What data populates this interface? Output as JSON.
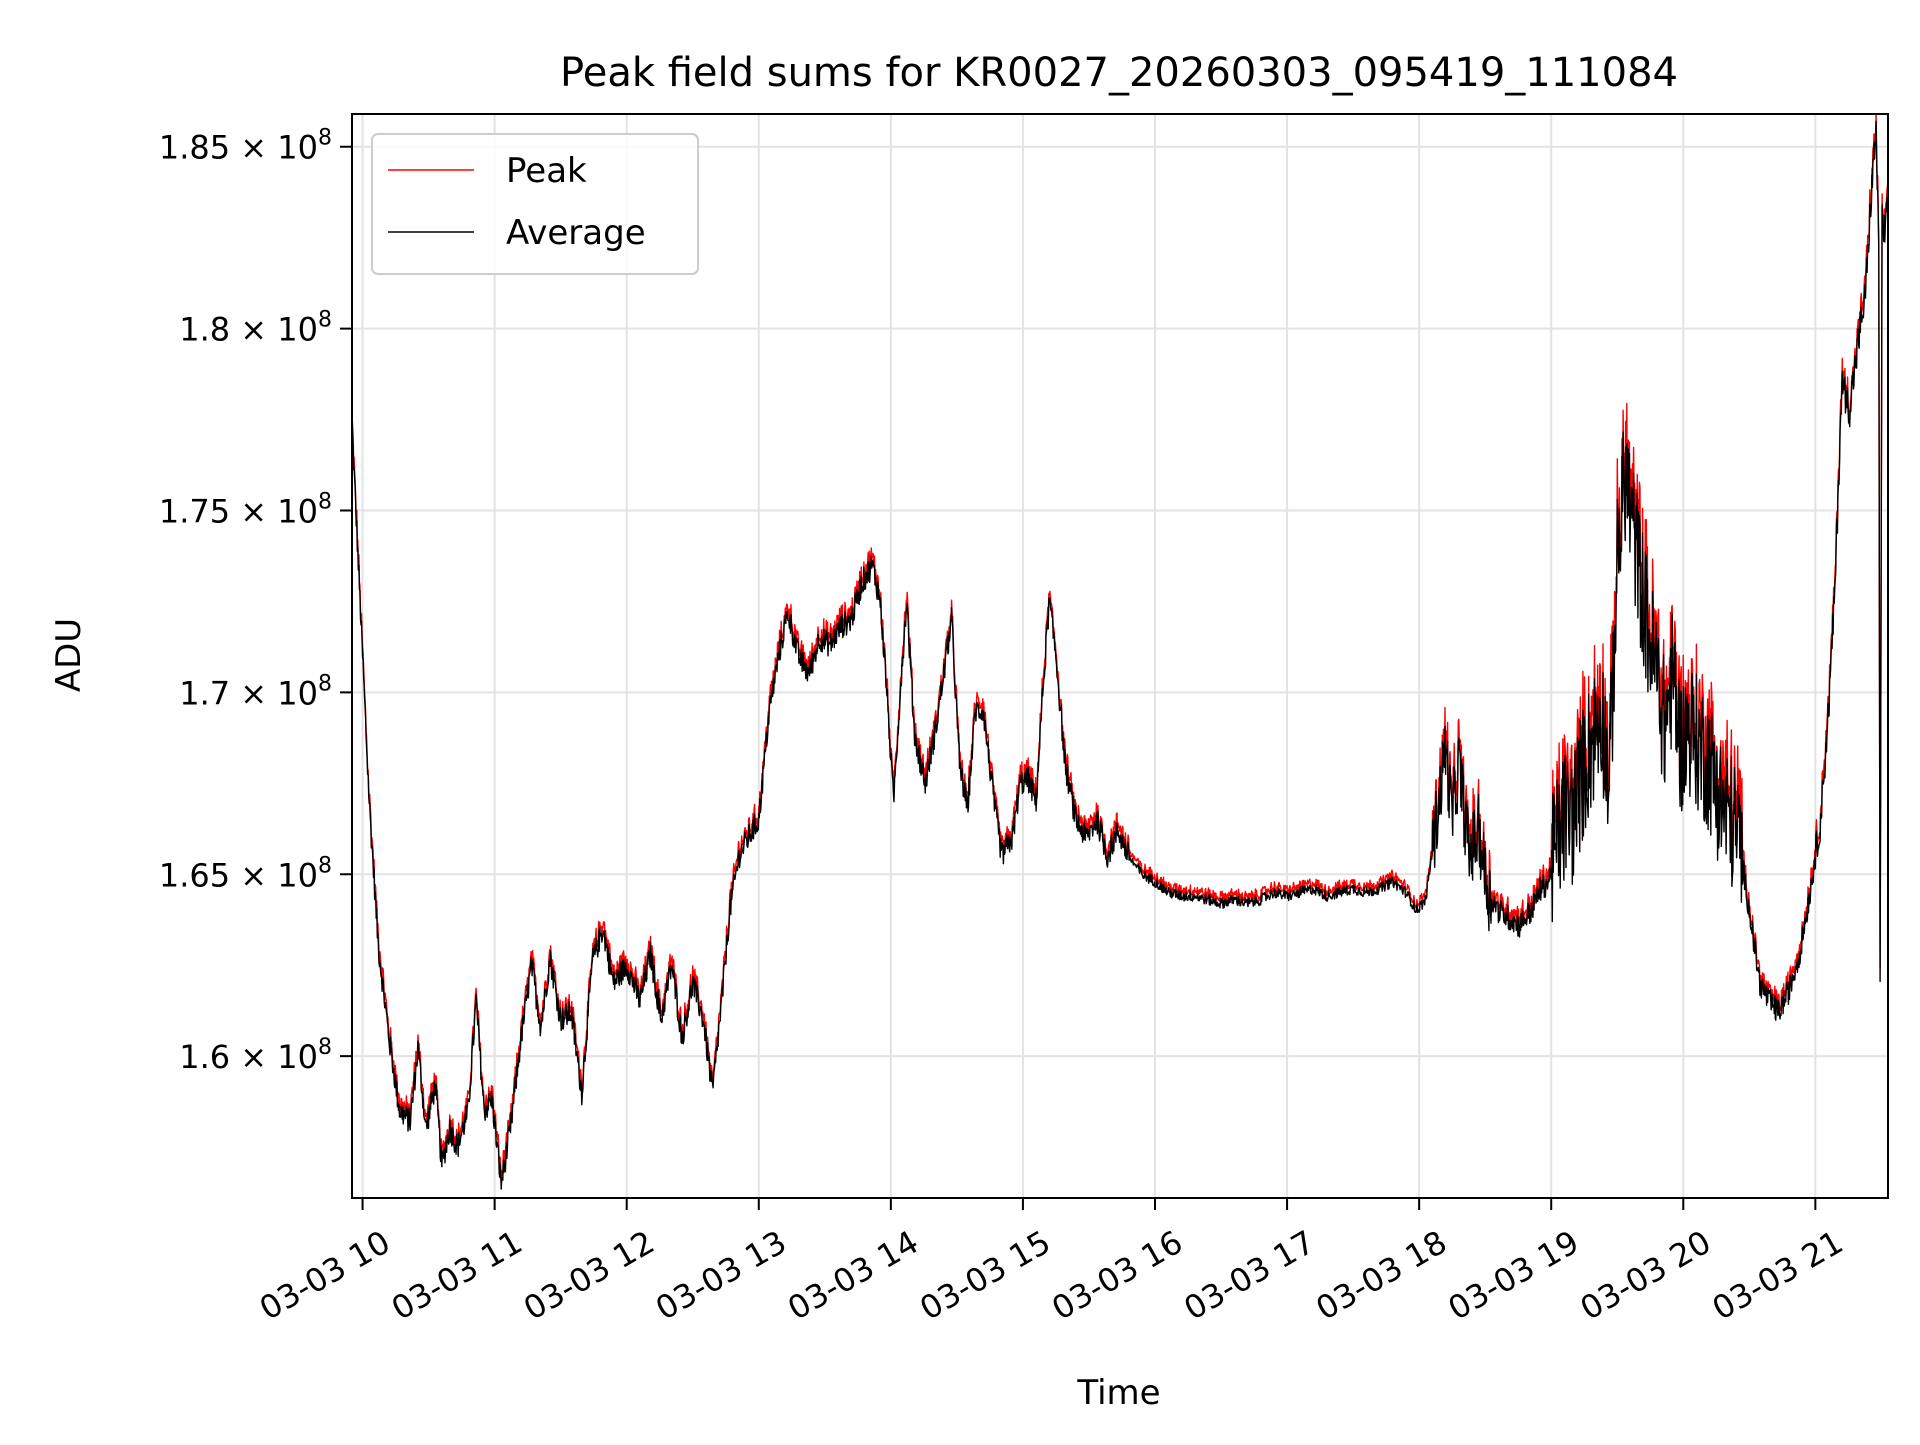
{
  "chart_data": {
    "type": "line",
    "title": "Peak field sums for KR0027_20260303_095419_111084",
    "xlabel": "Time",
    "ylabel": "ADU",
    "x_unit": "hours since 03-03 10:00",
    "xlim": [
      -0.08,
      11.55
    ],
    "ylim": [
      156100000,
      185900000
    ],
    "grid": true,
    "legend_position": "top-left",
    "x_ticks": [
      {
        "value": 0,
        "label": "03-03 10"
      },
      {
        "value": 1,
        "label": "03-03 11"
      },
      {
        "value": 2,
        "label": "03-03 12"
      },
      {
        "value": 3,
        "label": "03-03 13"
      },
      {
        "value": 4,
        "label": "03-03 14"
      },
      {
        "value": 5,
        "label": "03-03 15"
      },
      {
        "value": 6,
        "label": "03-03 16"
      },
      {
        "value": 7,
        "label": "03-03 17"
      },
      {
        "value": 8,
        "label": "03-03 18"
      },
      {
        "value": 9,
        "label": "03-03 19"
      },
      {
        "value": 10,
        "label": "03-03 20"
      },
      {
        "value": 11,
        "label": "03-03 21"
      }
    ],
    "y_ticks": [
      {
        "value": 160000000,
        "mantissa": "1.6",
        "exp": "8"
      },
      {
        "value": 165000000,
        "mantissa": "1.65",
        "exp": "8"
      },
      {
        "value": 170000000,
        "mantissa": "1.7",
        "exp": "8"
      },
      {
        "value": 175000000,
        "mantissa": "1.75",
        "exp": "8"
      },
      {
        "value": 180000000,
        "mantissa": "1.8",
        "exp": "8"
      },
      {
        "value": 185000000,
        "mantissa": "1.85",
        "exp": "8"
      }
    ],
    "series": [
      {
        "name": "Peak",
        "color": "#ff0000",
        "line": "thin"
      },
      {
        "name": "Average",
        "color": "#000000",
        "line": "thin"
      }
    ],
    "average_keypoints": [
      [
        -0.08,
        177.3
      ],
      [
        0.0,
        171.0
      ],
      [
        0.05,
        167.0
      ],
      [
        0.12,
        163.0
      ],
      [
        0.2,
        160.5
      ],
      [
        0.28,
        158.5
      ],
      [
        0.36,
        158.2
      ],
      [
        0.42,
        160.2
      ],
      [
        0.48,
        158.0
      ],
      [
        0.55,
        159.2
      ],
      [
        0.6,
        157.0
      ],
      [
        0.66,
        158.0
      ],
      [
        0.72,
        157.5
      ],
      [
        0.8,
        158.5
      ],
      [
        0.86,
        161.5
      ],
      [
        0.92,
        158.5
      ],
      [
        0.98,
        158.8
      ],
      [
        1.05,
        156.5
      ],
      [
        1.12,
        158.0
      ],
      [
        1.2,
        160.5
      ],
      [
        1.28,
        162.5
      ],
      [
        1.35,
        160.8
      ],
      [
        1.42,
        162.7
      ],
      [
        1.5,
        161.0
      ],
      [
        1.58,
        161.2
      ],
      [
        1.66,
        159.0
      ],
      [
        1.74,
        162.6
      ],
      [
        1.82,
        163.5
      ],
      [
        1.9,
        162.0
      ],
      [
        2.0,
        162.5
      ],
      [
        2.1,
        161.5
      ],
      [
        2.18,
        162.8
      ],
      [
        2.26,
        161.0
      ],
      [
        2.34,
        162.5
      ],
      [
        2.42,
        160.5
      ],
      [
        2.5,
        162.0
      ],
      [
        2.58,
        161.0
      ],
      [
        2.65,
        159.0
      ],
      [
        2.72,
        161.5
      ],
      [
        2.78,
        164.0
      ],
      [
        2.85,
        165.5
      ],
      [
        2.92,
        166.0
      ],
      [
        3.0,
        166.5
      ],
      [
        3.08,
        169.5
      ],
      [
        3.15,
        171.0
      ],
      [
        3.22,
        172.2
      ],
      [
        3.3,
        171.0
      ],
      [
        3.38,
        170.5
      ],
      [
        3.46,
        171.5
      ],
      [
        3.54,
        171.3
      ],
      [
        3.62,
        171.8
      ],
      [
        3.7,
        172.0
      ],
      [
        3.78,
        173.0
      ],
      [
        3.86,
        173.5
      ],
      [
        3.92,
        172.5
      ],
      [
        3.97,
        170.0
      ],
      [
        4.02,
        167.0
      ],
      [
        4.08,
        170.5
      ],
      [
        4.12,
        172.5
      ],
      [
        4.18,
        168.8
      ],
      [
        4.26,
        167.5
      ],
      [
        4.34,
        169.0
      ],
      [
        4.4,
        170.5
      ],
      [
        4.46,
        172.0
      ],
      [
        4.52,
        168.0
      ],
      [
        4.58,
        166.8
      ],
      [
        4.64,
        169.5
      ],
      [
        4.7,
        169.5
      ],
      [
        4.78,
        167.0
      ],
      [
        4.84,
        165.5
      ],
      [
        4.92,
        166.0
      ],
      [
        4.98,
        167.5
      ],
      [
        5.04,
        167.6
      ],
      [
        5.1,
        167.0
      ],
      [
        5.15,
        170.0
      ],
      [
        5.2,
        172.5
      ],
      [
        5.25,
        171.0
      ],
      [
        5.32,
        168.0
      ],
      [
        5.4,
        166.5
      ],
      [
        5.48,
        166.0
      ],
      [
        5.56,
        166.5
      ],
      [
        5.64,
        165.5
      ],
      [
        5.72,
        166.2
      ],
      [
        5.8,
        165.5
      ],
      [
        5.9,
        165.0
      ],
      [
        6.0,
        164.8
      ],
      [
        6.1,
        164.5
      ],
      [
        6.2,
        164.4
      ],
      [
        6.3,
        164.4
      ],
      [
        6.4,
        164.3
      ],
      [
        6.5,
        164.2
      ],
      [
        6.6,
        164.3
      ],
      [
        6.7,
        164.2
      ],
      [
        6.8,
        164.3
      ],
      [
        6.9,
        164.5
      ],
      [
        7.0,
        164.4
      ],
      [
        7.1,
        164.5
      ],
      [
        7.2,
        164.6
      ],
      [
        7.3,
        164.4
      ],
      [
        7.4,
        164.5
      ],
      [
        7.5,
        164.6
      ],
      [
        7.6,
        164.5
      ],
      [
        7.7,
        164.6
      ],
      [
        7.8,
        164.8
      ],
      [
        7.9,
        164.5
      ],
      [
        7.98,
        164.0
      ],
      [
        8.05,
        164.3
      ],
      [
        8.15,
        167.0
      ],
      [
        8.2,
        168.5
      ],
      [
        8.25,
        166.5
      ],
      [
        8.3,
        168.0
      ],
      [
        8.38,
        165.5
      ],
      [
        8.45,
        166.2
      ],
      [
        8.52,
        164.5
      ],
      [
        8.6,
        164.0
      ],
      [
        8.68,
        163.8
      ],
      [
        8.76,
        163.6
      ],
      [
        8.85,
        164.0
      ],
      [
        8.92,
        164.6
      ],
      [
        8.98,
        164.8
      ],
      [
        9.04,
        165.8
      ],
      [
        9.1,
        166.6
      ],
      [
        9.16,
        166.5
      ],
      [
        9.22,
        167.5
      ],
      [
        9.3,
        168.5
      ],
      [
        9.38,
        169.5
      ],
      [
        9.44,
        167.5
      ],
      [
        9.5,
        173.5
      ],
      [
        9.56,
        176.0
      ],
      [
        9.62,
        174.5
      ],
      [
        9.68,
        173.0
      ],
      [
        9.74,
        171.5
      ],
      [
        9.8,
        170.5
      ],
      [
        9.86,
        169.0
      ],
      [
        9.92,
        170.5
      ],
      [
        9.98,
        168.5
      ],
      [
        10.05,
        169.0
      ],
      [
        10.12,
        168.5
      ],
      [
        10.2,
        168.0
      ],
      [
        10.28,
        167.0
      ],
      [
        10.36,
        166.5
      ],
      [
        10.42,
        166.0
      ],
      [
        10.5,
        164.0
      ],
      [
        10.58,
        162.0
      ],
      [
        10.65,
        161.5
      ],
      [
        10.72,
        161.2
      ],
      [
        10.8,
        161.8
      ],
      [
        10.88,
        162.8
      ],
      [
        10.96,
        164.5
      ],
      [
        11.04,
        166.5
      ],
      [
        11.1,
        169.5
      ],
      [
        11.15,
        173.0
      ],
      [
        11.2,
        178.5
      ],
      [
        11.26,
        177.8
      ],
      [
        11.32,
        179.5
      ],
      [
        11.38,
        181.0
      ],
      [
        11.42,
        183.5
      ],
      [
        11.46,
        185.5
      ],
      [
        11.48,
        182.0
      ],
      [
        11.49,
        162.3
      ],
      [
        11.505,
        183.0
      ],
      [
        11.53,
        182.5
      ],
      [
        11.55,
        184.0
      ]
    ]
  }
}
